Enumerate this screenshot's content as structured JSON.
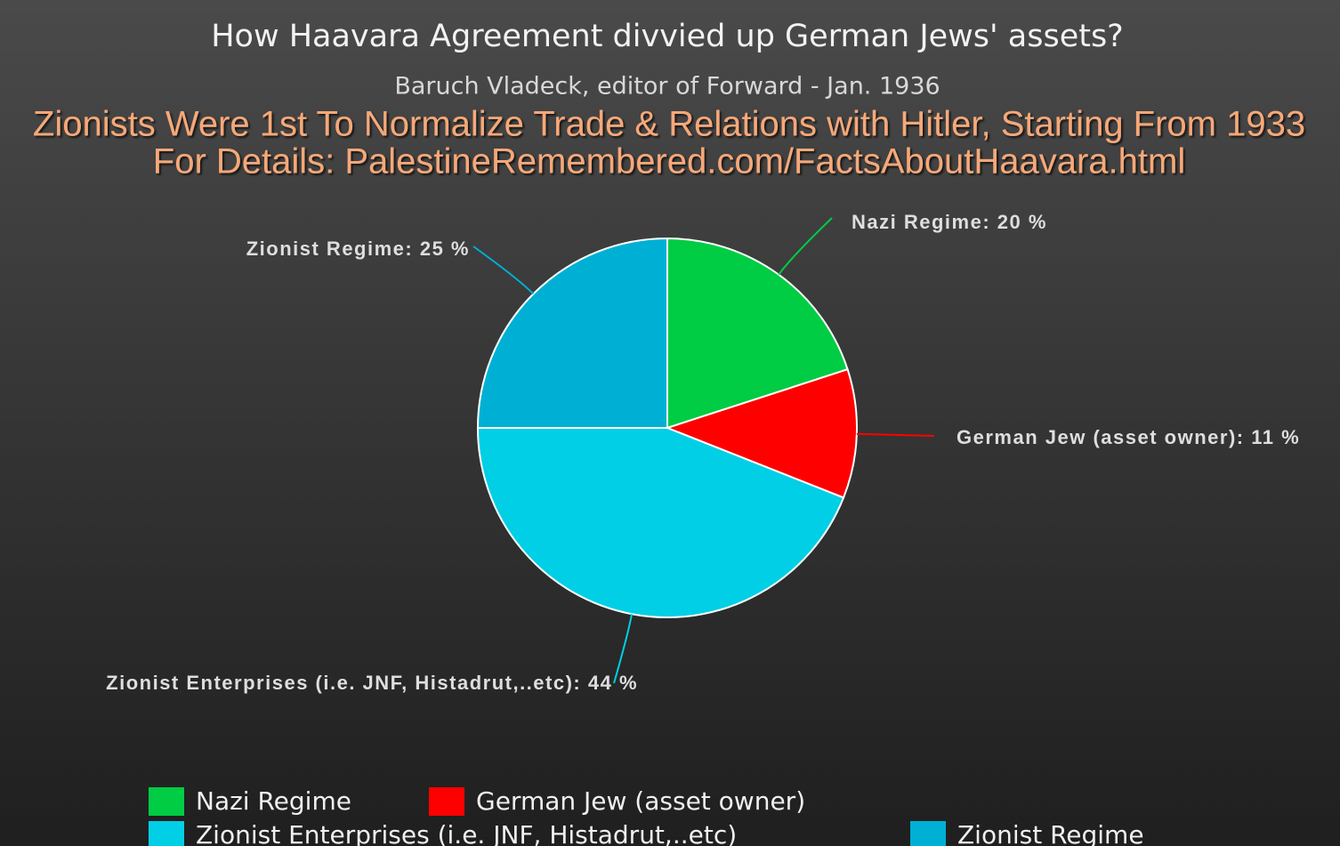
{
  "chart_data": {
    "type": "pie",
    "title": "How Haavara Agreement divvied up German Jews' assets?",
    "subtitle": "Baruch Vladeck, editor of Forward - Jan. 1936",
    "annotations": [
      "Zionists Were 1st To Normalize Trade & Relations with Hitler, Starting From 1933",
      "For Details: PalestineRemembered.com/FactsAboutHaavara.html"
    ],
    "categories": [
      "Nazi Regime",
      "German Jew (asset owner)",
      "Zionist Enterprises (i.e. JNF, Histadrut,..etc)",
      "Zionist Regime"
    ],
    "values": [
      20,
      11,
      44,
      25
    ],
    "value_labels": [
      "Nazi Regime: 20 %",
      "German Jew (asset owner): 11 %",
      "Zionist Enterprises (i.e. JNF, Histadrut,..etc): 44 %",
      "Zionist Regime: 25 %"
    ],
    "legend_labels": [
      "Nazi Regime",
      "German Jew (asset owner)",
      "Zionist Enterprises (i.e. JNF, Histadrut,..etc)",
      "Zionist Regime"
    ],
    "colors": [
      "#00cc44",
      "#ff0000",
      "#00cfe6",
      "#00b0d4"
    ]
  }
}
